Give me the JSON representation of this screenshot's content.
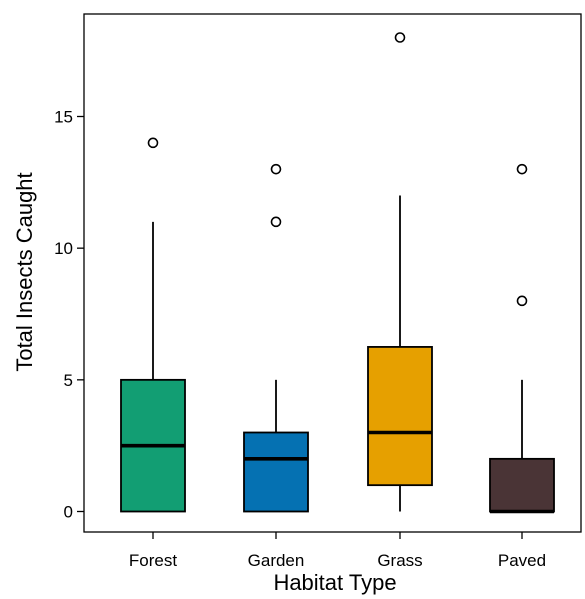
{
  "chart_data": {
    "type": "boxplot",
    "title": "",
    "xlabel": "Habitat Type",
    "ylabel": "Total Insects Caught",
    "ylim": [
      -0.8,
      18.5
    ],
    "yticks": [
      0,
      5,
      10,
      15
    ],
    "grid": false,
    "legend": "none",
    "categories": [
      "Forest",
      "Garden",
      "Grass",
      "Paved"
    ],
    "boxes": [
      {
        "category": "Forest",
        "color": "#129E73",
        "min": 0,
        "q1": 0,
        "median": 2.5,
        "q3": 5,
        "max": 11,
        "outliers": [
          14
        ]
      },
      {
        "category": "Garden",
        "color": "#0571B2",
        "min": 0,
        "q1": 0,
        "median": 2,
        "q3": 3,
        "max": 5,
        "outliers": [
          11,
          13
        ]
      },
      {
        "category": "Grass",
        "color": "#E6A000",
        "min": 0,
        "q1": 1,
        "median": 3,
        "q3": 6.25,
        "max": 12,
        "outliers": [
          18
        ]
      },
      {
        "category": "Paved",
        "color": "#4A3436",
        "min": 0,
        "q1": 0,
        "median": 0,
        "q3": 2,
        "max": 5,
        "outliers": [
          8,
          13
        ]
      }
    ]
  }
}
